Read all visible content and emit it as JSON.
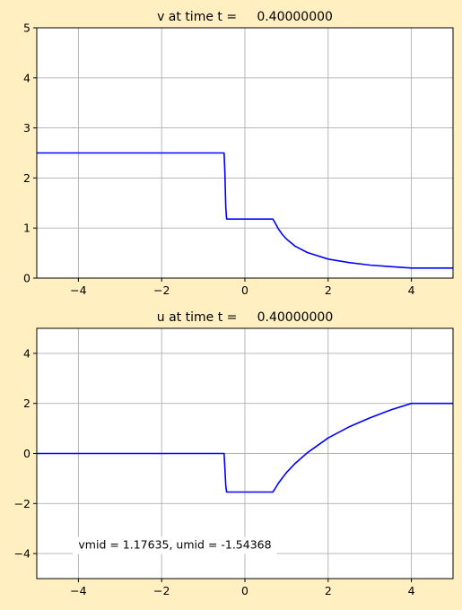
{
  "chart_data": [
    {
      "type": "line",
      "title": "v at time t =     0.40000000",
      "xlim": [
        -5,
        5
      ],
      "ylim": [
        0,
        5
      ],
      "xticks": [
        -4,
        -2,
        0,
        2,
        4
      ],
      "yticks": [
        0,
        1,
        2,
        3,
        4,
        5
      ],
      "xtick_labels": [
        "−4",
        "−2",
        "0",
        "2",
        "4"
      ],
      "ytick_labels": [
        "0",
        "1",
        "2",
        "3",
        "4",
        "5"
      ],
      "grid": true,
      "series": [
        {
          "color": "#0000ff",
          "x": [
            -5,
            -0.5,
            -0.48,
            -0.46,
            -0.44,
            0.67,
            0.7,
            0.8,
            0.9,
            1.0,
            1.2,
            1.5,
            2.0,
            2.5,
            3.0,
            3.5,
            4.0,
            4.5,
            5.0
          ],
          "y": [
            2.5,
            2.5,
            2.1,
            1.4,
            1.18,
            1.18,
            1.14,
            0.99,
            0.87,
            0.78,
            0.64,
            0.51,
            0.38,
            0.31,
            0.26,
            0.23,
            0.2,
            0.2,
            0.2
          ]
        }
      ]
    },
    {
      "type": "line",
      "title": "u at time t =     0.40000000",
      "xlim": [
        -5,
        5
      ],
      "ylim": [
        -5,
        5
      ],
      "xticks": [
        -4,
        -2,
        0,
        2,
        4
      ],
      "yticks": [
        -4,
        -2,
        0,
        2,
        4
      ],
      "xtick_labels": [
        "−4",
        "−2",
        "0",
        "2",
        "4"
      ],
      "ytick_labels": [
        "−4",
        "−2",
        "0",
        "2",
        "4"
      ],
      "grid": true,
      "annotation": "vmid = 1.17635, umid = -1.54368",
      "series": [
        {
          "color": "#0000ff",
          "x": [
            -5,
            -0.5,
            -0.48,
            -0.46,
            -0.44,
            0.67,
            0.7,
            0.8,
            0.9,
            1.0,
            1.2,
            1.5,
            2.0,
            2.5,
            3.0,
            3.5,
            4.0,
            4.5,
            5.0
          ],
          "y": [
            0,
            0,
            -0.6,
            -1.3,
            -1.54,
            -1.54,
            -1.47,
            -1.2,
            -0.97,
            -0.76,
            -0.41,
            0.03,
            0.62,
            1.06,
            1.42,
            1.74,
            2.0,
            2.0,
            2.0
          ]
        }
      ]
    }
  ]
}
